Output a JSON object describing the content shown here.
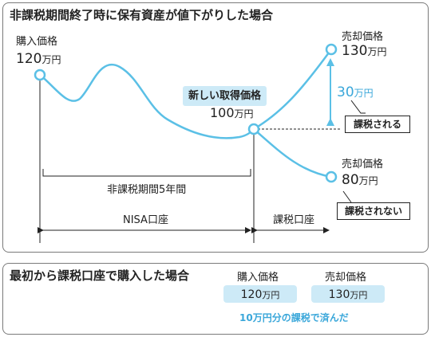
{
  "top_panel": {
    "title": "非課税期間終了時に保有資産が値下がりした場合",
    "purchase": {
      "label": "購入価格",
      "value": "120",
      "unit": "万円"
    },
    "sale_up": {
      "label": "売却価格",
      "value": "130",
      "unit": "万円"
    },
    "sale_down": {
      "label": "売却価格",
      "value": "80",
      "unit": "万円"
    },
    "new_basis": {
      "label": "新しい取得価格",
      "value": "100",
      "unit": "万円"
    },
    "gain": {
      "value": "30",
      "unit": "万円"
    },
    "taxed_label": "課税される",
    "not_taxed_label": "課税されない",
    "period_label": "非課税期間5年間",
    "nisa_label": "NISA口座",
    "taxable_label": "課税口座"
  },
  "bottom_panel": {
    "title": "最初から課税口座で購入した場合",
    "purchase": {
      "label": "購入価格",
      "value": "120",
      "unit": "万円"
    },
    "sale": {
      "label": "売却価格",
      "value": "130",
      "unit": "万円"
    },
    "note": "10万円分の課税で済んだ"
  },
  "colors": {
    "accent": "#5bc0e6",
    "pill": "#cdeaf7",
    "note_text": "#3aa7da",
    "line": "#222222",
    "border": "#7a7a7a"
  }
}
